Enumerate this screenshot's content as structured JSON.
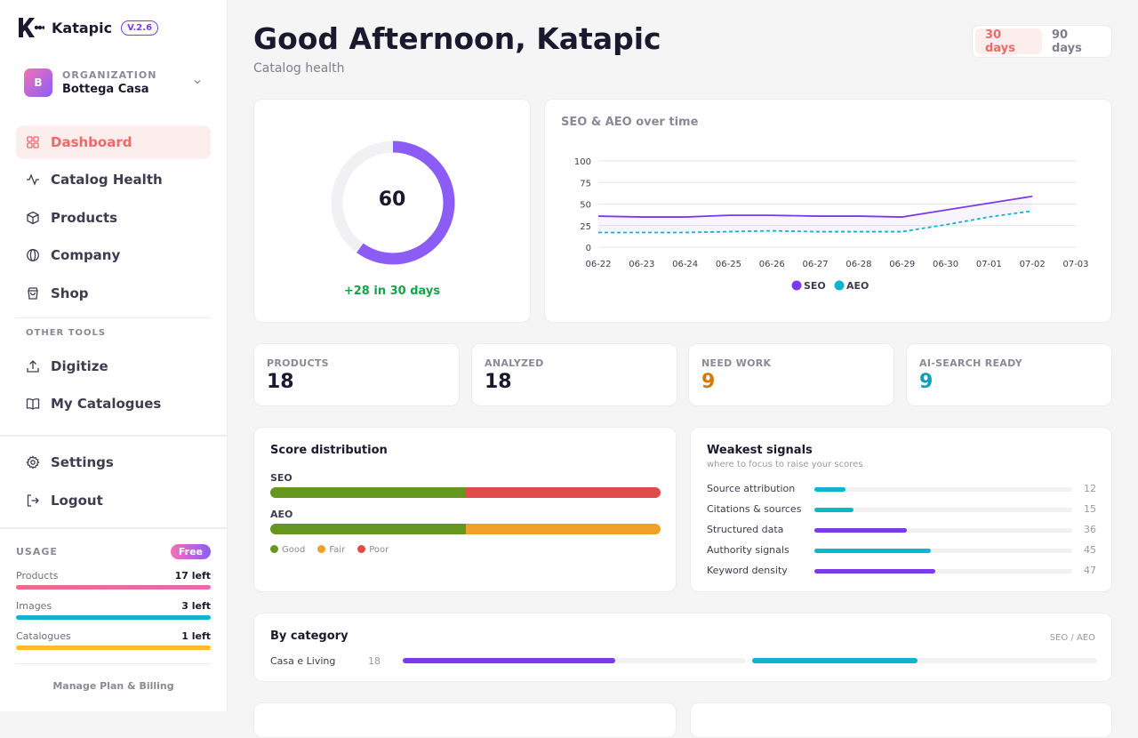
{
  "app": {
    "name": "Katapic",
    "version": "V.2.6"
  },
  "org": {
    "label": "ORGANIZATION",
    "name": "Bottega Casa",
    "avatar": "B"
  },
  "nav": [
    {
      "label": "Dashboard",
      "icon": "grid-icon",
      "active": true
    },
    {
      "label": "Catalog Health",
      "icon": "activity-icon"
    },
    {
      "label": "Products",
      "icon": "box-icon"
    },
    {
      "label": "Company",
      "icon": "globe-icon"
    },
    {
      "label": "Shop",
      "icon": "bag-icon"
    }
  ],
  "other_tools_label": "OTHER TOOLS",
  "tools": [
    {
      "label": "Digitize",
      "icon": "upload-icon"
    },
    {
      "label": "My Catalogues",
      "icon": "book-icon"
    }
  ],
  "settings_label": "Settings",
  "logout_label": "Logout",
  "usage": {
    "title": "USAGE",
    "plan": "Free",
    "items": [
      {
        "name": "Products",
        "value": "17 left",
        "color": "#f06a8a"
      },
      {
        "name": "Images",
        "value": "3 left",
        "color": "#0eb5d0"
      },
      {
        "name": "Catalogues",
        "value": "1 left",
        "color": "#fbbf24"
      }
    ],
    "manage": "Manage Plan & Billing"
  },
  "header": {
    "title": "Good Afternoon, Katapic",
    "subtitle": "Catalog health"
  },
  "range": {
    "options": [
      "30 days",
      "90 days"
    ],
    "active": "30 days"
  },
  "score": {
    "value": "60",
    "score": 60,
    "max": 100,
    "delta": "+28 in 30 days"
  },
  "chart_data": {
    "type": "line",
    "title": "SEO & AEO over time",
    "x": [
      "06-22",
      "06-23",
      "06-24",
      "06-25",
      "06-26",
      "06-27",
      "06-28",
      "06-29",
      "06-30",
      "07-01",
      "07-02",
      "07-03"
    ],
    "yticks": [
      0,
      25,
      50,
      75,
      100
    ],
    "ylim": [
      0,
      100
    ],
    "grid": true,
    "legend": "bottom",
    "series": [
      {
        "name": "SEO",
        "color": "#7c3aed",
        "dashed": false,
        "values": [
          36,
          35,
          35,
          37,
          37,
          36,
          36,
          35,
          43,
          51,
          59,
          null
        ]
      },
      {
        "name": "AEO",
        "color": "#0eb5d0",
        "dashed": true,
        "values": [
          17,
          17,
          17,
          18,
          19,
          18,
          18,
          18,
          26,
          35,
          42,
          null
        ]
      }
    ]
  },
  "stats": [
    {
      "label": "PRODUCTS",
      "value": "18",
      "color": "#1a1a2e"
    },
    {
      "label": "ANALYZED",
      "value": "18",
      "color": "#1a1a2e"
    },
    {
      "label": "NEED WORK",
      "value": "9",
      "color": "#d97706"
    },
    {
      "label": "AI-SEARCH READY",
      "value": "9",
      "color": "#0e9fb8"
    }
  ],
  "distribution": {
    "title": "Score distribution",
    "rows": [
      {
        "label": "SEO",
        "segments": [
          {
            "share": 0.5,
            "color": "#65961f"
          },
          {
            "share": 0.5,
            "color": "#e24b4b"
          }
        ]
      },
      {
        "label": "AEO",
        "segments": [
          {
            "share": 0.5,
            "color": "#65961f"
          },
          {
            "share": 0.5,
            "color": "#f0a028"
          }
        ]
      }
    ],
    "legend": [
      {
        "label": "Good",
        "color": "#65961f"
      },
      {
        "label": "Fair",
        "color": "#f0a028"
      },
      {
        "label": "Poor",
        "color": "#e24b4b"
      }
    ]
  },
  "weakest": {
    "title": "Weakest signals",
    "subtitle": "where to focus to raise your scores",
    "rows": [
      {
        "label": "Source attribution",
        "value": "12",
        "score": 12,
        "color": "#0eb5d0"
      },
      {
        "label": "Citations & sources",
        "value": "15",
        "score": 15,
        "color": "#0eb5d0"
      },
      {
        "label": "Structured data",
        "value": "36",
        "score": 36,
        "color": "#7c3aed"
      },
      {
        "label": "Authority signals",
        "value": "45",
        "score": 45,
        "color": "#0eb5d0"
      },
      {
        "label": "Keyword density",
        "value": "47",
        "score": 47,
        "color": "#7c3aed"
      }
    ]
  },
  "category": {
    "title": "By category",
    "right": "SEO / AEO",
    "rows": [
      {
        "name": "Casa e Living",
        "count": "18",
        "seo": 62,
        "aeo": 48
      }
    ]
  }
}
